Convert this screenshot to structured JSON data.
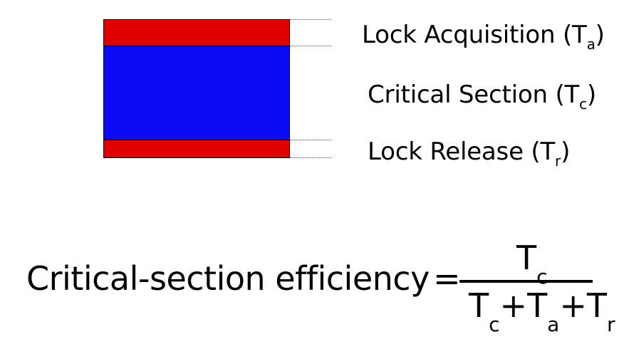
{
  "diagram": {
    "colors": {
      "lock": "#e00000",
      "critical": "#0a0af5",
      "outline": "#000000"
    },
    "labels": {
      "acquisition": {
        "text": "Lock Acquisition (T",
        "sub": "a",
        "close": ")"
      },
      "critical": {
        "text": "Critical Section (T",
        "sub": "c",
        "close": ")"
      },
      "release": {
        "text": "Lock Release (T",
        "sub": "r",
        "close": ")"
      }
    }
  },
  "formula": {
    "name": "Critical-section efficiency",
    "equals": "=",
    "numerator": {
      "T": "T",
      "sub": "c"
    },
    "denominator": [
      {
        "T": "T",
        "sub": "c"
      },
      {
        "plus": "+"
      },
      {
        "T": "T",
        "sub": "a"
      },
      {
        "plus": "+"
      },
      {
        "T": "T",
        "sub": "r"
      }
    ]
  }
}
